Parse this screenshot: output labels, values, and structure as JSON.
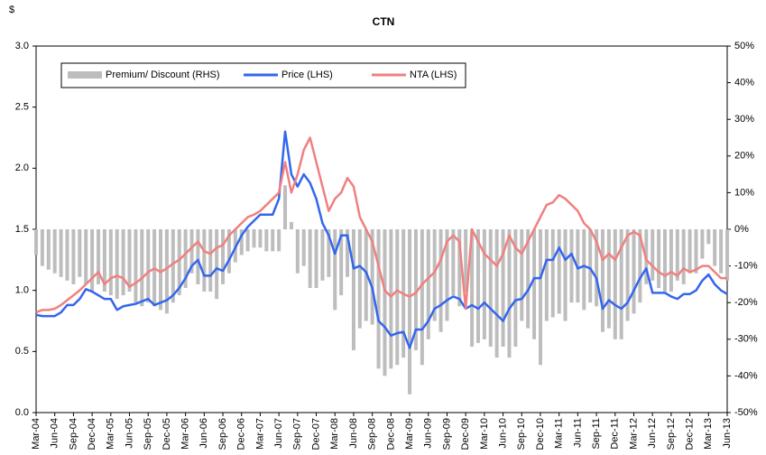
{
  "chart_data": {
    "type": "combo",
    "title": "CTN",
    "y_label": "$",
    "categories": [
      "Mar-04",
      null,
      null,
      "Jun-04",
      null,
      null,
      "Sep-04",
      null,
      null,
      "Dec-04",
      null,
      null,
      "Mar-05",
      null,
      null,
      "Jun-05",
      null,
      null,
      "Sep-05",
      null,
      null,
      "Dec-05",
      null,
      null,
      "Mar-06",
      null,
      null,
      "Jun-06",
      null,
      null,
      "Sep-06",
      null,
      null,
      "Dec-06",
      null,
      null,
      "Mar-07",
      null,
      null,
      "Jun-07",
      null,
      null,
      "Sep-07",
      null,
      null,
      "Dec-07",
      null,
      null,
      "Mar-08",
      null,
      null,
      "Jun-08",
      null,
      null,
      "Sep-08",
      null,
      null,
      "Dec-08",
      null,
      null,
      "Mar-09",
      null,
      null,
      "Jun-09",
      null,
      null,
      "Sep-09",
      null,
      null,
      "Dec-09",
      null,
      null,
      "Mar-10",
      null,
      null,
      "Jun-10",
      null,
      null,
      "Sep-10",
      null,
      null,
      "Dec-10",
      null,
      null,
      "Mar-11",
      null,
      null,
      "Jun-11",
      null,
      null,
      "Sep-11",
      null,
      null,
      "Dec-11",
      null,
      null,
      "Mar-12",
      null,
      null,
      "Jun-12",
      null,
      null,
      "Sep-12",
      null,
      null,
      "Dec-12",
      null,
      null,
      "Mar-13",
      null,
      null,
      "Jun-13"
    ],
    "series": [
      {
        "name": "Premium/ Discount (RHS)",
        "type": "bar",
        "axis": "y2",
        "color": "#bdbdbd",
        "values": [
          -7,
          -10,
          -11,
          -12,
          -13,
          -14,
          -15,
          -13,
          -15,
          -17,
          -15,
          -17,
          -18,
          -19,
          -18,
          -17,
          -20,
          -21,
          -20,
          -21,
          -22,
          -23,
          -20,
          -18,
          -16,
          -12,
          -15,
          -17,
          -17,
          -19,
          -15,
          -12,
          -9,
          -7,
          -6,
          -5,
          -5,
          -6,
          -6,
          -6,
          12,
          2,
          -12,
          -10,
          -16,
          -16,
          -14,
          -13,
          -22,
          -18,
          -13,
          -33,
          -27,
          -25,
          -26,
          -38,
          -40,
          -38,
          -37,
          -35,
          -45,
          -33,
          -37,
          -30,
          -25,
          -28,
          -25,
          -18,
          -21,
          -17,
          -32,
          -31,
          -30,
          -32,
          -35,
          -32,
          -35,
          -32,
          -25,
          -27,
          -30,
          -37,
          -25,
          -24,
          -23,
          -25,
          -20,
          -20,
          -22,
          -20,
          -21,
          -28,
          -27,
          -30,
          -30,
          -25,
          -23,
          -20,
          -15,
          -14,
          -16,
          -17,
          -17,
          -14,
          -15,
          -12,
          -12,
          -8,
          -4,
          -10,
          -12,
          -14
        ]
      },
      {
        "name": "Price (LHS)",
        "type": "line",
        "color": "#3366ee",
        "values": [
          0.8,
          0.79,
          0.79,
          0.79,
          0.82,
          0.88,
          0.88,
          0.93,
          1.01,
          0.99,
          0.96,
          0.93,
          0.93,
          0.84,
          0.87,
          0.88,
          0.89,
          0.91,
          0.93,
          0.88,
          0.9,
          0.92,
          0.96,
          1.02,
          1.1,
          1.2,
          1.25,
          1.12,
          1.12,
          1.18,
          1.16,
          1.25,
          1.35,
          1.45,
          1.52,
          1.57,
          1.62,
          1.62,
          1.62,
          1.75,
          2.3,
          1.95,
          1.85,
          1.95,
          1.88,
          1.75,
          1.55,
          1.45,
          1.3,
          1.45,
          1.45,
          1.18,
          1.2,
          1.15,
          1.02,
          0.75,
          0.7,
          0.63,
          0.65,
          0.66,
          0.53,
          0.68,
          0.68,
          0.75,
          0.85,
          0.88,
          0.92,
          0.95,
          0.93,
          0.85,
          0.88,
          0.85,
          0.9,
          0.85,
          0.8,
          0.75,
          0.85,
          0.92,
          0.93,
          1.0,
          1.1,
          1.1,
          1.25,
          1.25,
          1.35,
          1.25,
          1.3,
          1.18,
          1.2,
          1.18,
          1.1,
          0.85,
          0.92,
          0.88,
          0.85,
          0.9,
          1.0,
          1.1,
          1.18,
          0.98,
          0.98,
          0.98,
          0.95,
          0.93,
          0.97,
          0.97,
          1.0,
          1.08,
          1.13,
          1.05,
          1.0,
          0.97
        ]
      },
      {
        "name": "NTA (LHS)",
        "type": "line",
        "color": "#f08080",
        "values": [
          0.82,
          0.84,
          0.84,
          0.85,
          0.88,
          0.92,
          0.96,
          1.0,
          1.05,
          1.1,
          1.15,
          1.05,
          1.1,
          1.12,
          1.1,
          1.03,
          1.06,
          1.1,
          1.15,
          1.18,
          1.15,
          1.18,
          1.22,
          1.25,
          1.3,
          1.35,
          1.4,
          1.32,
          1.3,
          1.35,
          1.37,
          1.45,
          1.5,
          1.55,
          1.6,
          1.62,
          1.65,
          1.7,
          1.75,
          1.8,
          2.05,
          1.8,
          1.95,
          2.15,
          2.25,
          2.05,
          1.85,
          1.65,
          1.75,
          1.8,
          1.92,
          1.85,
          1.6,
          1.5,
          1.4,
          1.2,
          1.0,
          0.95,
          1.0,
          0.97,
          0.95,
          0.98,
          1.05,
          1.1,
          1.15,
          1.25,
          1.4,
          1.45,
          1.4,
          0.85,
          1.5,
          1.4,
          1.3,
          1.25,
          1.2,
          1.3,
          1.45,
          1.35,
          1.3,
          1.4,
          1.5,
          1.6,
          1.7,
          1.72,
          1.78,
          1.75,
          1.7,
          1.65,
          1.55,
          1.5,
          1.4,
          1.25,
          1.3,
          1.25,
          1.35,
          1.45,
          1.48,
          1.45,
          1.25,
          1.2,
          1.15,
          1.12,
          1.15,
          1.12,
          1.18,
          1.15,
          1.17,
          1.2,
          1.2,
          1.15,
          1.1,
          1.1
        ]
      }
    ],
    "ylim": [
      0,
      3
    ],
    "yticks": [
      {
        "value": 0,
        "label": "0.0"
      },
      0.5,
      {
        "value": 1,
        "label": "1.0"
      },
      1.5,
      {
        "value": 2,
        "label": "2.0"
      },
      2.5,
      {
        "value": 3,
        "label": "3.0"
      }
    ],
    "y2lim": [
      -50,
      50
    ],
    "y2ticks": [
      {
        "value": -50,
        "label": "-50%"
      },
      {
        "value": -40,
        "label": "-40%"
      },
      {
        "value": -30,
        "label": "-30%"
      },
      {
        "value": -20,
        "label": "-20%"
      },
      {
        "value": -10,
        "label": "-10%"
      },
      {
        "value": 0,
        "label": "0%"
      },
      {
        "value": 10,
        "label": "10%"
      },
      {
        "value": 20,
        "label": "20%"
      },
      {
        "value": 30,
        "label": "30%"
      },
      {
        "value": 40,
        "label": "40%"
      },
      {
        "value": 50,
        "label": "50%"
      }
    ]
  }
}
